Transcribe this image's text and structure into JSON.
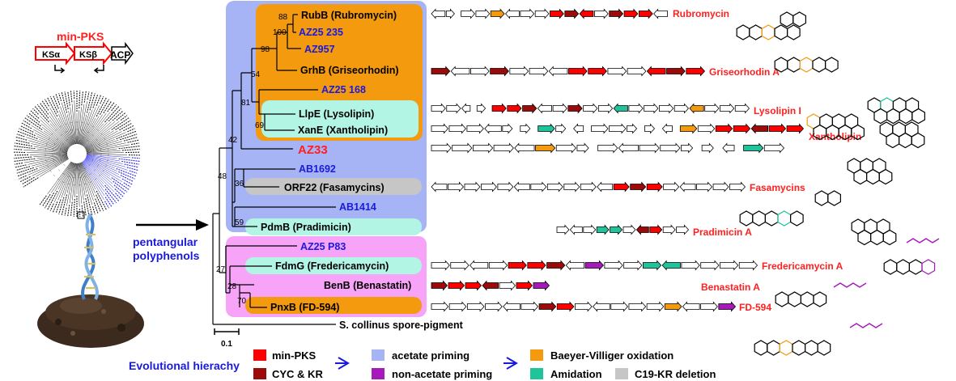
{
  "colors": {
    "minpks": "#ff0000",
    "cyckr": "#9c0a0a",
    "acetate": "#a6b4f5",
    "nonacetate": "#a51ab8",
    "bv": "#f39a0e",
    "amidation": "#1fc49a",
    "deletion": "#c6c6c6",
    "blue_text": "#1a1adc",
    "red_text": "#ff2020",
    "pink_box": "#f7a3f7",
    "teal_box": "#b3f5e4",
    "orange_box": "#f59a10"
  },
  "left_panel": {
    "minpks_title": "min-PKS",
    "ks_alpha": "KSα",
    "ks_beta": "KSβ",
    "acp": "ACP",
    "pentangular": "pentangular",
    "polyphenols": "polyphenols",
    "tree_icon": "circular-phylogeny-icon",
    "soil_icon": "soil-dna-icon"
  },
  "tree": {
    "leaves": [
      {
        "label": "RubB (Rubromycin)",
        "color": "black"
      },
      {
        "label": "AZ25 235",
        "color": "blue"
      },
      {
        "label": "AZ957",
        "color": "blue"
      },
      {
        "label": "GrhB (Griseorhodin)",
        "color": "black"
      },
      {
        "label": "AZ25 168",
        "color": "blue"
      },
      {
        "label": "LlpE (Lysolipin)",
        "color": "black"
      },
      {
        "label": "XanE (Xantholipin)",
        "color": "black"
      },
      {
        "label": "AZ33",
        "color": "red"
      },
      {
        "label": "AB1692",
        "color": "blue"
      },
      {
        "label": "ORF22 (Fasamycins)",
        "color": "black"
      },
      {
        "label": "AB1414",
        "color": "blue"
      },
      {
        "label": "PdmB (Pradimicin)",
        "color": "black"
      },
      {
        "label": "AZ25 P83",
        "color": "blue"
      },
      {
        "label": "FdmG (Fredericamycin)",
        "color": "black"
      },
      {
        "label": "BenB (Benastatin)",
        "color": "black"
      },
      {
        "label": "PnxB (FD-594)",
        "color": "black"
      },
      {
        "label": "S. collinus spore-pigment",
        "color": "black"
      }
    ],
    "bootstraps": [
      "88",
      "100",
      "98",
      "54",
      "81",
      "69",
      "42",
      "48",
      "36",
      "59",
      "27",
      "28",
      "70"
    ],
    "scale": "0.1"
  },
  "products": [
    "Rubromycin",
    "Griseorhodin A",
    "Lysolipin I",
    "Xantholipin",
    "Fasamycins",
    "Pradimicin A",
    "Fredericamycin A",
    "Benastatin A",
    "FD-594"
  ],
  "legend": {
    "title": "Evolutional hierachy",
    "minpks": "min-PKS",
    "cyckr": "CYC & KR",
    "acetate": "acetate priming",
    "nonacetate": "non-acetate priming",
    "bv": "Baeyer-Villiger oxidation",
    "amidation": "Amidation",
    "deletion": "C19-KR deletion"
  },
  "clusters": [
    "WwWWOWWWRRRWRRRW",
    "RWWRWWWRRWWRRR",
    "WWwwRRRWWRWWGWWWWOWWW",
    "WWWWwwGwwWWwwwOWRRRRR",
    "WWWWWOWwWWWWwwwGW",
    "WWWWWWWWWWWRRRWWWWW",
    "WWWGGWRRWW",
    "WWWWRRRWPWWGGWWWW",
    "RRRRWRP",
    "WWWWWWRRWWWWWOWWP"
  ]
}
